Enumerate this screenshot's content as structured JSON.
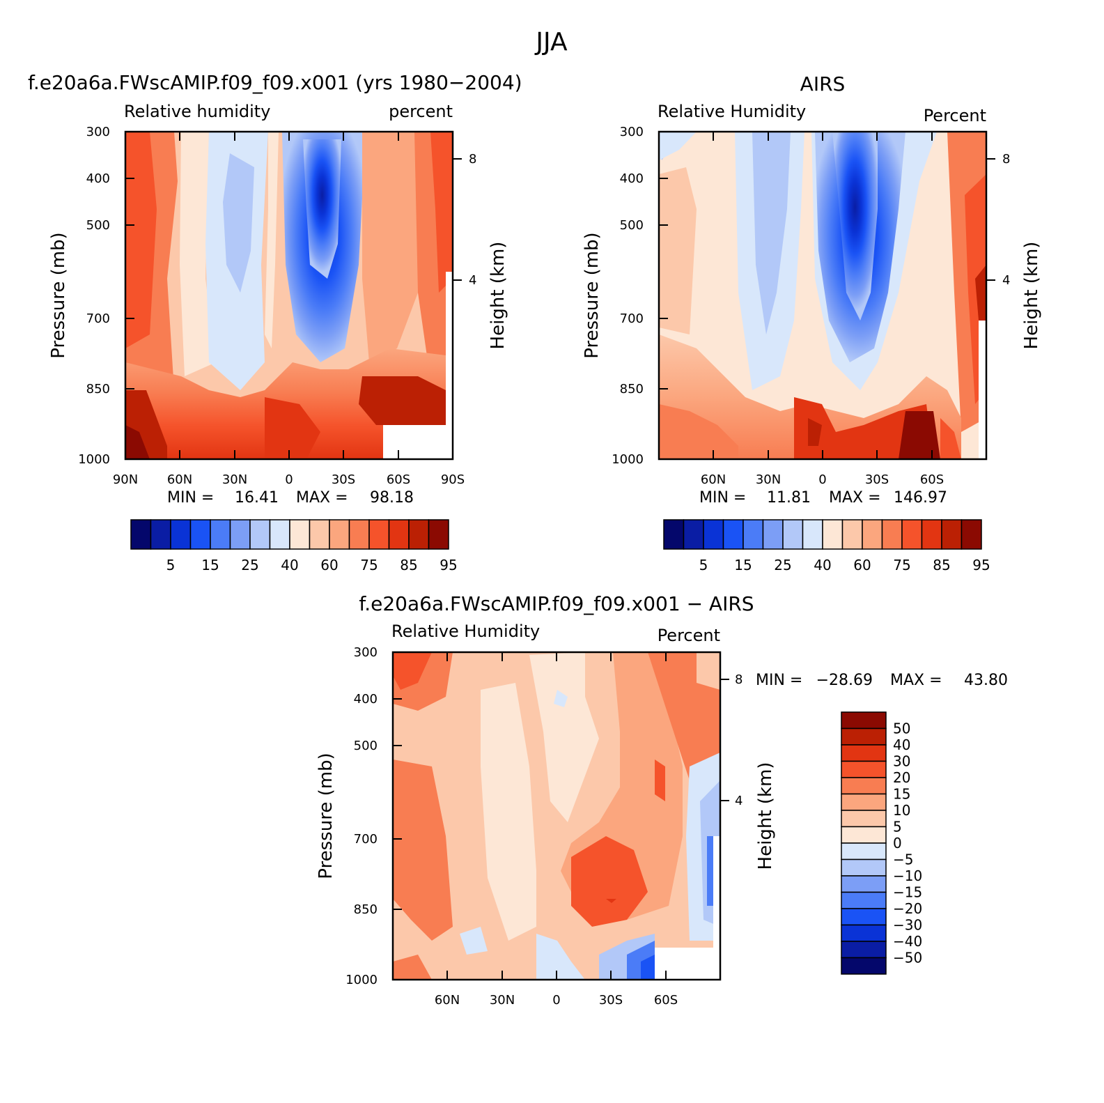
{
  "figure_title": "JJA",
  "chart_data": [
    {
      "type": "heatmap",
      "title": "f.e20a6a.FWscAMIP.f09_f09.x001 (yrs 1980−2004)",
      "left_string": "Relative humidity",
      "right_string": "percent",
      "ylabel": "Pressure (mb)",
      "ylabel_right": "Height (km)",
      "yticks": [
        "300",
        "400",
        "500",
        "700",
        "850",
        "1000"
      ],
      "yticks_right": [
        "8",
        "4"
      ],
      "xticks": [
        "90N",
        "60N",
        "30N",
        "0",
        "30S",
        "60S",
        "90S"
      ],
      "min_label": "MIN =",
      "min_value": "16.41",
      "max_label": "MAX =",
      "max_value": "98.18",
      "colorbar_labels": [
        "5",
        "15",
        "25",
        "40",
        "60",
        "75",
        "85",
        "95"
      ]
    },
    {
      "type": "heatmap",
      "title": "AIRS",
      "left_string": "Relative Humidity",
      "right_string": "Percent",
      "ylabel": "Pressure (mb)",
      "ylabel_right": "Height (km)",
      "yticks": [
        "300",
        "400",
        "500",
        "700",
        "850",
        "1000"
      ],
      "yticks_right": [
        "8",
        "4"
      ],
      "xticks": [
        "60N",
        "30N",
        "0",
        "30S",
        "60S"
      ],
      "min_label": "MIN =",
      "min_value": "11.81",
      "max_label": "MAX =",
      "max_value": "146.97",
      "colorbar_labels": [
        "5",
        "15",
        "25",
        "40",
        "60",
        "75",
        "85",
        "95"
      ]
    },
    {
      "type": "heatmap",
      "title": "f.e20a6a.FWscAMIP.f09_f09.x001 − AIRS",
      "left_string": "Relative Humidity",
      "right_string": "Percent",
      "ylabel": "Pressure (mb)",
      "ylabel_right": "Height (km)",
      "yticks": [
        "300",
        "400",
        "500",
        "700",
        "850",
        "1000"
      ],
      "yticks_right": [
        "8",
        "4"
      ],
      "xticks": [
        "60N",
        "30N",
        "0",
        "30S",
        "60S"
      ],
      "min_label": "MIN =",
      "min_value": "−28.69",
      "max_label": "MAX =",
      "max_value": "43.80",
      "colorbar_labels": [
        "50",
        "40",
        "30",
        "20",
        "15",
        "10",
        "5",
        "0",
        "−5",
        "−10",
        "−15",
        "−20",
        "−30",
        "−40",
        "−50"
      ]
    }
  ],
  "colors": {
    "abs_scale": [
      "#04076b",
      "#0a1da4",
      "#0a33d6",
      "#1a53f5",
      "#4b7cf7",
      "#7c9ef6",
      "#b2c8f8",
      "#d8e7fb",
      "#fde7d6",
      "#fcc8aa",
      "#fba67e",
      "#f87d52",
      "#f5532b",
      "#e23512",
      "#bb2004",
      "#8b0a02"
    ],
    "diff_scale": [
      "#8b0a02",
      "#bb2004",
      "#e23512",
      "#f5532b",
      "#f87d52",
      "#fba67e",
      "#fcc8aa",
      "#fde7d6",
      "#d8e7fb",
      "#b2c8f8",
      "#7c9ef6",
      "#4b7cf7",
      "#1a53f5",
      "#0a33d6",
      "#0a1da4",
      "#04076b"
    ],
    "missing": "#ffffff"
  }
}
